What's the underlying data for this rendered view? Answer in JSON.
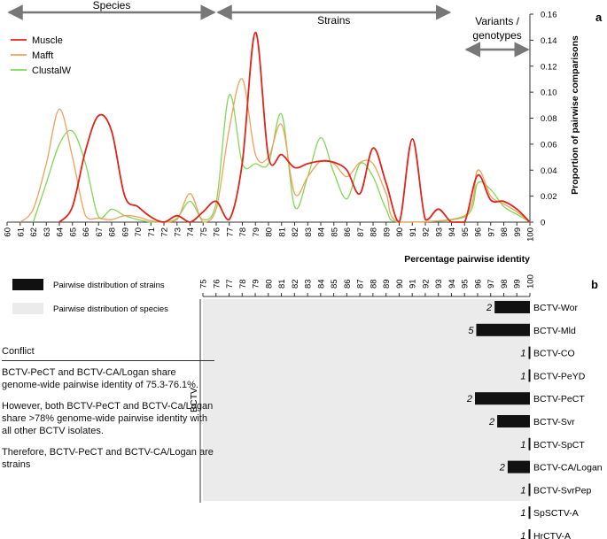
{
  "panel_a": {
    "panel_label": "a",
    "regions": [
      {
        "label": "Species",
        "from": 60,
        "to": 76
      },
      {
        "label": "Strains",
        "from": 76,
        "to": 94
      },
      {
        "label": "Variants / genotypes",
        "from": 95,
        "to": 100
      }
    ],
    "legend": [
      {
        "name": "Muscle",
        "color": "#e0231b"
      },
      {
        "name": "Mafft",
        "color": "#f2a05a"
      },
      {
        "name": "ClustalW",
        "color": "#7ed957"
      }
    ]
  },
  "chart_data": [
    {
      "type": "line",
      "title": "",
      "xlabel": "Percentage pairwise identity",
      "ylabel": "Proportion of pairwise comparisons",
      "xlim": [
        60,
        100
      ],
      "ylim": [
        0,
        0.16
      ],
      "x_ticks": [
        "60",
        "61",
        "62",
        "63",
        "64",
        "65",
        "66",
        "67",
        "68",
        "69",
        "70",
        "71",
        "72",
        "73",
        "74",
        "75",
        "76",
        "77",
        "78",
        "79",
        "80",
        "81",
        "82",
        "83",
        "84",
        "85",
        "86",
        "87",
        "88",
        "89",
        "90",
        "91",
        "92",
        "93",
        "94",
        "95",
        "96",
        "97",
        "98",
        "99",
        "100"
      ],
      "y_ticks": [
        "0",
        "0.02",
        "0.04",
        "0.06",
        "0.08",
        "0.10",
        "0.12",
        "0.14",
        "0.16"
      ],
      "series": [
        {
          "name": "Muscle",
          "color": "#e0231b",
          "points": [
            [
              64,
              0
            ],
            [
              65,
              0.012
            ],
            [
              66,
              0.055
            ],
            [
              67,
              0.082
            ],
            [
              68,
              0.07
            ],
            [
              69,
              0.02
            ],
            [
              70,
              0.012
            ],
            [
              71,
              0.004
            ],
            [
              72,
              0
            ],
            [
              73,
              0.005
            ],
            [
              74,
              0
            ],
            [
              75,
              0.008
            ],
            [
              76,
              0.016
            ],
            [
              77,
              0.002
            ],
            [
              78,
              0.046
            ],
            [
              79,
              0.146
            ],
            [
              80,
              0.05
            ],
            [
              81,
              0.052
            ],
            [
              82,
              0.042
            ],
            [
              83,
              0.045
            ],
            [
              84,
              0.047
            ],
            [
              85,
              0.046
            ],
            [
              86,
              0.04
            ],
            [
              87,
              0.022
            ],
            [
              88,
              0.057
            ],
            [
              89,
              0.03
            ],
            [
              90,
              0
            ],
            [
              91,
              0.064
            ],
            [
              92,
              0.002
            ],
            [
              93,
              0.01
            ],
            [
              94,
              0
            ],
            [
              95,
              0
            ],
            [
              96,
              0.036
            ],
            [
              97,
              0.017
            ],
            [
              98,
              0.016
            ],
            [
              99,
              0.01
            ],
            [
              100,
              0
            ]
          ]
        },
        {
          "name": "Mafft",
          "color": "#f2a05a",
          "points": [
            [
              61,
              0
            ],
            [
              62,
              0.01
            ],
            [
              63,
              0.045
            ],
            [
              64,
              0.087
            ],
            [
              65,
              0.05
            ],
            [
              66,
              0.005
            ],
            [
              67,
              0.003
            ],
            [
              68,
              0.002
            ],
            [
              69,
              0.005
            ],
            [
              70,
              0.004
            ],
            [
              71,
              0.001
            ],
            [
              72,
              0
            ],
            [
              73,
              0.002
            ],
            [
              74,
              0.022
            ],
            [
              75,
              0
            ],
            [
              76,
              0.01
            ],
            [
              77,
              0.072
            ],
            [
              78,
              0.11
            ],
            [
              79,
              0.052
            ],
            [
              80,
              0.05
            ],
            [
              81,
              0.075
            ],
            [
              82,
              0.022
            ],
            [
              83,
              0.035
            ],
            [
              84,
              0.047
            ],
            [
              85,
              0.045
            ],
            [
              86,
              0.035
            ],
            [
              87,
              0.046
            ],
            [
              88,
              0.045
            ],
            [
              89,
              0.022
            ],
            [
              90,
              0
            ],
            [
              95,
              0.005
            ],
            [
              96,
              0.04
            ],
            [
              97,
              0.02
            ],
            [
              98,
              0.014
            ],
            [
              99,
              0.008
            ],
            [
              100,
              0
            ]
          ]
        },
        {
          "name": "ClustalW",
          "color": "#7ed957",
          "points": [
            [
              62,
              0
            ],
            [
              63,
              0.03
            ],
            [
              64,
              0.06
            ],
            [
              65,
              0.07
            ],
            [
              66,
              0.045
            ],
            [
              67,
              0.004
            ],
            [
              68,
              0.01
            ],
            [
              69,
              0.005
            ],
            [
              70,
              0.002
            ],
            [
              71,
              0
            ],
            [
              72,
              0
            ],
            [
              73,
              0.003
            ],
            [
              74,
              0.016
            ],
            [
              75,
              0.002
            ],
            [
              76,
              0.015
            ],
            [
              77,
              0.098
            ],
            [
              78,
              0.045
            ],
            [
              79,
              0.045
            ],
            [
              80,
              0.045
            ],
            [
              81,
              0.083
            ],
            [
              82,
              0.012
            ],
            [
              83,
              0.035
            ],
            [
              84,
              0.065
            ],
            [
              85,
              0.038
            ],
            [
              86,
              0.018
            ],
            [
              87,
              0.045
            ],
            [
              88,
              0.035
            ],
            [
              89,
              0.01
            ],
            [
              90,
              0
            ],
            [
              95,
              0.004
            ],
            [
              96,
              0.03
            ],
            [
              97,
              0.025
            ],
            [
              98,
              0.012
            ],
            [
              99,
              0.006
            ],
            [
              100,
              0
            ]
          ]
        }
      ]
    },
    {
      "type": "bar",
      "panel_label": "b",
      "group_label": "BCTV",
      "axis_label": "",
      "xlim": [
        75,
        100
      ],
      "x_ticks": [
        "75",
        "76",
        "77",
        "78",
        "79",
        "80",
        "81",
        "82",
        "83",
        "84",
        "85",
        "86",
        "87",
        "88",
        "89",
        "90",
        "91",
        "92",
        "93",
        "94",
        "95",
        "96",
        "97",
        "98",
        "99",
        "100"
      ],
      "legend": [
        {
          "name": "Pairwise distribution of strains",
          "color": "#111111"
        },
        {
          "name": "Pairwise distribution of species",
          "color": "#ebebeb"
        }
      ],
      "species_band": {
        "from": 75,
        "to": 100
      },
      "categories": [
        "BCTV-Wor",
        "BCTV-Mld",
        "BCTV-CO",
        "BCTV-PeYD",
        "BCTV-PeCT",
        "BCTV-Svr",
        "BCTV-SpCT",
        "BCTV-CA/Logan",
        "BCTV-SvrPep",
        "SpSCTV-A",
        "HrCTV-A"
      ],
      "ranges": [
        [
          97.3,
          100
        ],
        [
          95.9,
          100
        ],
        [
          99.9,
          100
        ],
        [
          99.9,
          100
        ],
        [
          95.8,
          100
        ],
        [
          97.5,
          100
        ],
        [
          99.9,
          100
        ],
        [
          98.3,
          100
        ],
        [
          99.9,
          100
        ],
        [
          99.9,
          100
        ],
        [
          99.9,
          100
        ]
      ],
      "counts": [
        "2",
        "5",
        "1",
        "1",
        "2",
        "2",
        "1",
        "2",
        "1",
        "1",
        "1"
      ]
    }
  ],
  "conflict": {
    "title": "Conflict",
    "paragraphs": [
      "BCTV-PeCT and BCTV-CA/Logan  share genome-wide pairwise identity  of 75.3-76.1%.",
      "However, both BCTV-PeCT and BCTV-Ca/Logan share >78% genome-wide pairwise identity with all other BCTV isolates.",
      "Therefore, BCTV-PeCT and BCTV-CA/Logan are strains"
    ]
  }
}
